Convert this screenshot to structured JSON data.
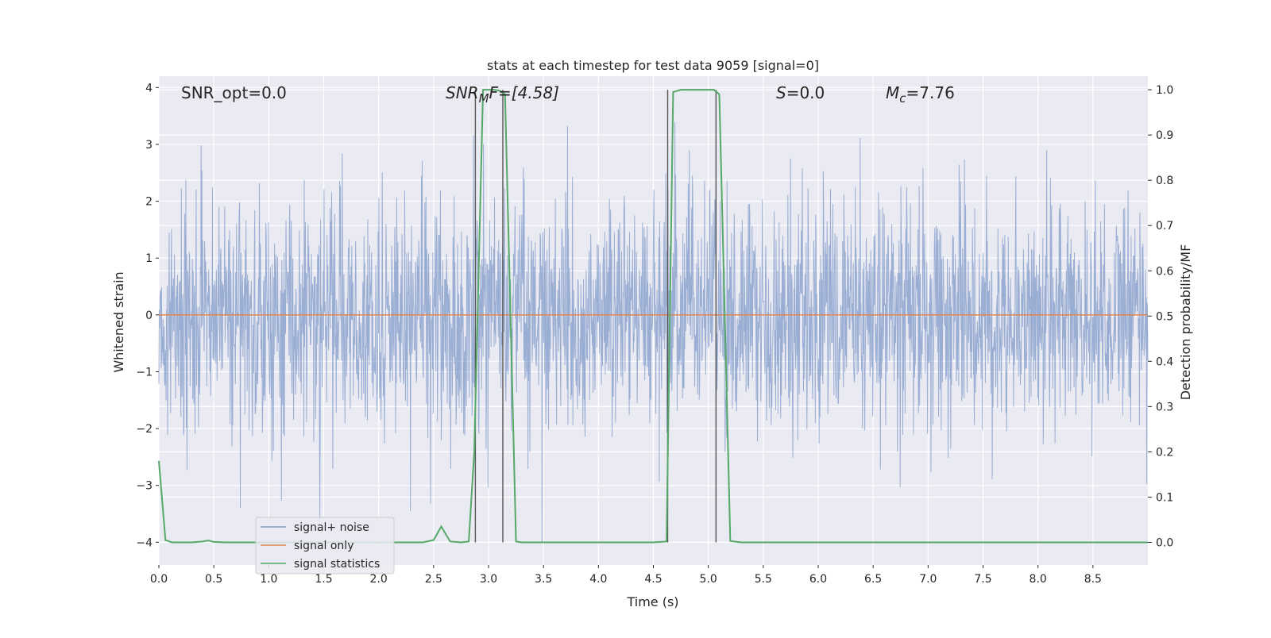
{
  "chart_data": {
    "type": "line",
    "title": "stats at each timestep for test data 9059 [signal=0]",
    "xlabel": "Time (s)",
    "ylabel": "Whitened strain",
    "ylabel_right": "Detection probability/MF",
    "xlim": [
      0,
      9.0
    ],
    "ylim": [
      -4.4,
      4.2
    ],
    "ylim_right": [
      -0.05,
      1.03
    ],
    "x_ticks": [
      0.0,
      0.5,
      1.0,
      1.5,
      2.0,
      2.5,
      3.0,
      3.5,
      4.0,
      4.5,
      5.0,
      5.5,
      6.0,
      6.5,
      7.0,
      7.5,
      8.0,
      8.5
    ],
    "x_tick_labels": [
      "0.0",
      "0.5",
      "1.0",
      "1.5",
      "2.0",
      "2.5",
      "3.0",
      "3.5",
      "4.0",
      "4.5",
      "5.0",
      "5.5",
      "6.0",
      "6.5",
      "7.0",
      "7.5",
      "8.0",
      "8.5"
    ],
    "y_ticks": [
      -4,
      -3,
      -2,
      -1,
      0,
      1,
      2,
      3,
      4
    ],
    "y_tick_labels": [
      "−4",
      "−3",
      "−2",
      "−1",
      "0",
      "1",
      "2",
      "3",
      "4"
    ],
    "y_right_ticks": [
      0.0,
      0.1,
      0.2,
      0.3,
      0.4,
      0.5,
      0.6,
      0.7,
      0.8,
      0.9,
      1.0
    ],
    "y_right_tick_labels": [
      "0.0",
      "0.1",
      "0.2",
      "0.3",
      "0.4",
      "0.5",
      "0.6",
      "0.7",
      "0.8",
      "0.9",
      "1.0"
    ],
    "grid": true,
    "legend_position": "lower-left",
    "annotations": {
      "snr_opt": "SNR_opt=0.0",
      "snr_mf_sym": "SNR",
      "snr_mf_sub": "M",
      "snr_mf_rest": "F=[4.58]",
      "s_sym": "S",
      "s_rest": "=0.0",
      "mc_sym": "M",
      "mc_sub": "c",
      "mc_rest": "=7.76"
    },
    "vertical_lines_x": [
      2.88,
      3.13,
      4.63,
      5.07
    ],
    "series": [
      {
        "name": "signal+ noise",
        "color": "#7f9ac9",
        "description_values": "whitened gaussian noise, approx. std 1, extremes about -4.0 to 3.9"
      },
      {
        "name": "signal only",
        "color": "#dd8452",
        "x": [
          0.0,
          9.0
        ],
        "y": [
          0.0,
          0.0
        ]
      },
      {
        "name": "signal statistics",
        "color": "#55a868",
        "axis": "right",
        "x": [
          0.0,
          0.06,
          0.12,
          0.2,
          0.3,
          0.4,
          0.45,
          0.5,
          0.6,
          0.7,
          0.8,
          0.9,
          1.0,
          1.2,
          1.4,
          1.6,
          1.8,
          2.0,
          2.2,
          2.4,
          2.5,
          2.57,
          2.65,
          2.75,
          2.82,
          2.87,
          2.95,
          3.05,
          3.1,
          3.15,
          3.2,
          3.25,
          3.3,
          3.5,
          4.0,
          4.5,
          4.62,
          4.68,
          4.75,
          5.0,
          5.05,
          5.1,
          5.15,
          5.2,
          5.3,
          5.5,
          6.0,
          7.0,
          8.0,
          9.0
        ],
        "y": [
          0.18,
          0.005,
          0.0,
          0.0,
          0.0,
          0.002,
          0.004,
          0.001,
          0.0,
          0.0,
          0.0,
          0.0,
          0.0,
          0.0,
          0.0,
          0.0,
          0.0,
          0.0,
          0.0,
          0.0,
          0.005,
          0.035,
          0.002,
          0.0,
          0.002,
          0.2,
          1.0,
          1.0,
          0.998,
          0.99,
          0.5,
          0.002,
          0.0,
          0.0,
          0.0,
          0.0,
          0.002,
          0.995,
          1.0,
          1.0,
          1.0,
          0.99,
          0.5,
          0.003,
          0.0,
          0.0,
          0.0,
          0.0,
          0.0,
          0.0
        ]
      }
    ]
  }
}
